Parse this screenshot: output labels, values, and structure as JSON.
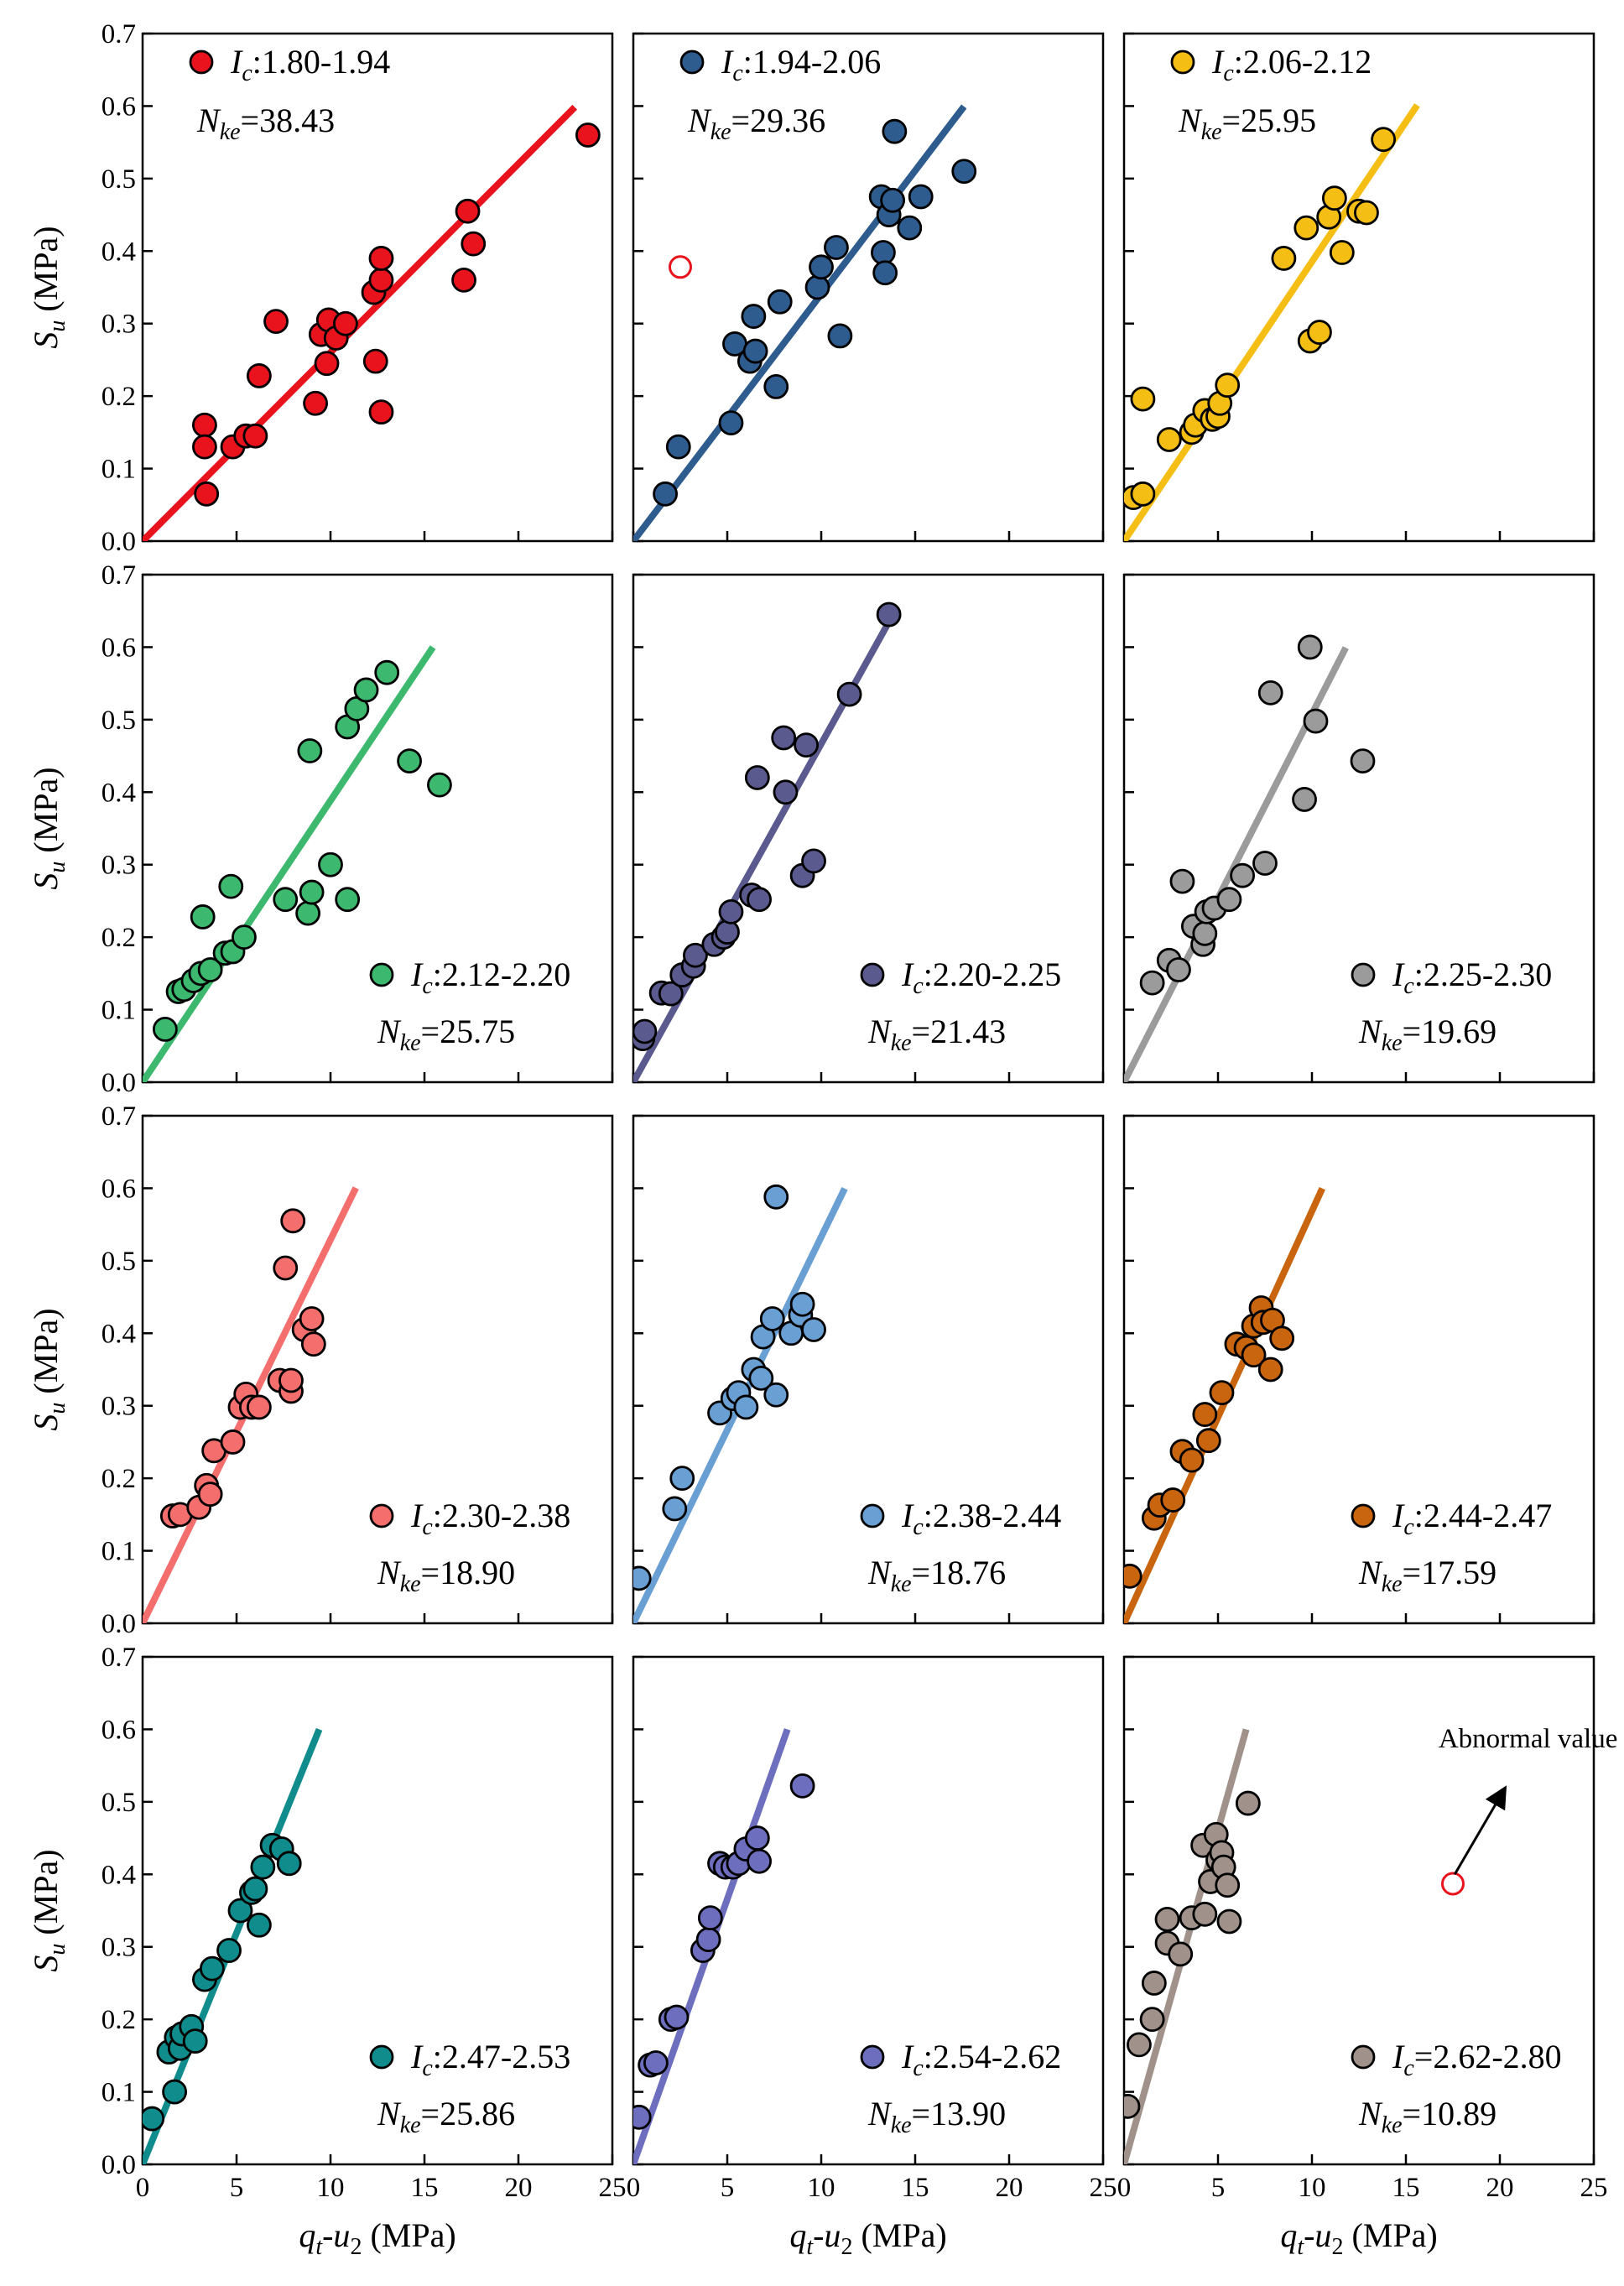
{
  "figure": {
    "xlabel": {
      "main": "q",
      "sub": "t",
      "rest": "-u",
      "sub2": "2",
      "unit": " (MPa)"
    },
    "ylabel": {
      "main": "S",
      "sub": "u",
      "unit": " (MPa)"
    },
    "xticks": [
      "0",
      "5",
      "10",
      "15",
      "20",
      "25"
    ],
    "yticks": [
      "0.0",
      "0.1",
      "0.2",
      "0.3",
      "0.4",
      "0.5",
      "0.6",
      "0.7"
    ]
  },
  "chart_data": [
    {
      "type": "scatter",
      "title": "",
      "xlabel": "qt-u2 (MPa)",
      "ylabel": "Su (MPa)",
      "xlim": [
        0,
        25
      ],
      "ylim": [
        0,
        0.7
      ],
      "legend": {
        "ic": "1.80-1.94",
        "nke": "=38.43",
        "position": "top-left"
      },
      "color": "#e8131c",
      "fit": {
        "slope": 0.02602,
        "x_end": 23.0
      },
      "points": [
        [
          3.3,
          0.16
        ],
        [
          3.3,
          0.13
        ],
        [
          3.4,
          0.065
        ],
        [
          4.8,
          0.13
        ],
        [
          5.5,
          0.145
        ],
        [
          6,
          0.145
        ],
        [
          6.2,
          0.228
        ],
        [
          7.1,
          0.303
        ],
        [
          9.2,
          0.19
        ],
        [
          9.5,
          0.285
        ],
        [
          9.8,
          0.245
        ],
        [
          9.9,
          0.305
        ],
        [
          10.3,
          0.28
        ],
        [
          10.8,
          0.3
        ],
        [
          12.3,
          0.343
        ],
        [
          12.4,
          0.248
        ],
        [
          12.7,
          0.36
        ],
        [
          12.7,
          0.39
        ],
        [
          12.7,
          0.178
        ],
        [
          17.1,
          0.36
        ],
        [
          17.3,
          0.455
        ],
        [
          17.6,
          0.41
        ],
        [
          23.7,
          0.56
        ]
      ],
      "abnormal": []
    },
    {
      "type": "scatter",
      "title": "",
      "xlabel": "qt-u2 (MPa)",
      "ylabel": "Su (MPa)",
      "xlim": [
        0,
        25
      ],
      "ylim": [
        0,
        0.7
      ],
      "legend": {
        "ic": "1.94-2.06",
        "nke": "=29.36",
        "position": "top-left"
      },
      "color": "#2e5c8e",
      "fit": {
        "slope": 0.03406,
        "x_end": 17.6
      },
      "points": [
        [
          1.7,
          0.065
        ],
        [
          2.4,
          0.13
        ],
        [
          5.2,
          0.163
        ],
        [
          5.4,
          0.272
        ],
        [
          6.2,
          0.248
        ],
        [
          6.4,
          0.31
        ],
        [
          6.5,
          0.262
        ],
        [
          7.6,
          0.213
        ],
        [
          7.8,
          0.33
        ],
        [
          9.8,
          0.35
        ],
        [
          10,
          0.378
        ],
        [
          10.8,
          0.405
        ],
        [
          11,
          0.283
        ],
        [
          13.2,
          0.475
        ],
        [
          13.3,
          0.398
        ],
        [
          13.4,
          0.37
        ],
        [
          13.6,
          0.45
        ],
        [
          13.8,
          0.47
        ],
        [
          13.9,
          0.565
        ],
        [
          14.7,
          0.432
        ],
        [
          15.3,
          0.475
        ],
        [
          17.6,
          0.51
        ]
      ],
      "abnormal": [
        [
          2.5,
          0.378
        ]
      ]
    },
    {
      "type": "scatter",
      "title": "",
      "xlabel": "qt-u2 (MPa)",
      "ylabel": "Su (MPa)",
      "xlim": [
        0,
        25
      ],
      "ylim": [
        0,
        0.7
      ],
      "legend": {
        "ic": "2.06-2.12",
        "nke": "=25.95",
        "position": "top-left"
      },
      "color": "#f5be14",
      "fit": {
        "slope": 0.03854,
        "x_end": 15.6
      },
      "points": [
        [
          0.5,
          0.06
        ],
        [
          1,
          0.065
        ],
        [
          1,
          0.196
        ],
        [
          2.4,
          0.14
        ],
        [
          3.6,
          0.15
        ],
        [
          3.8,
          0.16
        ],
        [
          4.3,
          0.18
        ],
        [
          4.7,
          0.168
        ],
        [
          5,
          0.172
        ],
        [
          5.1,
          0.19
        ],
        [
          5.5,
          0.215
        ],
        [
          8.5,
          0.39
        ],
        [
          9.7,
          0.432
        ],
        [
          9.9,
          0.276
        ],
        [
          10.4,
          0.288
        ],
        [
          10.9,
          0.447
        ],
        [
          11.2,
          0.473
        ],
        [
          11.6,
          0.398
        ],
        [
          12.5,
          0.455
        ],
        [
          12.9,
          0.453
        ],
        [
          13.8,
          0.554
        ]
      ],
      "abnormal": []
    },
    {
      "type": "scatter",
      "title": "",
      "xlabel": "qt-u2 (MPa)",
      "ylabel": "Su (MPa)",
      "xlim": [
        0,
        25
      ],
      "ylim": [
        0,
        0.7
      ],
      "legend": {
        "ic": "2.12-2.20",
        "nke": "=25.75",
        "position": "bottom-right"
      },
      "color": "#3cb96e",
      "fit": {
        "slope": 0.03883,
        "x_end": 15.45
      },
      "points": [
        [
          1.2,
          0.073
        ],
        [
          1.9,
          0.125
        ],
        [
          2.2,
          0.128
        ],
        [
          2.7,
          0.14
        ],
        [
          3.1,
          0.15
        ],
        [
          3.2,
          0.228
        ],
        [
          3.6,
          0.155
        ],
        [
          4.4,
          0.178
        ],
        [
          4.7,
          0.27
        ],
        [
          4.8,
          0.18
        ],
        [
          5.4,
          0.2
        ],
        [
          7.6,
          0.252
        ],
        [
          8.8,
          0.233
        ],
        [
          8.9,
          0.457
        ],
        [
          9,
          0.262
        ],
        [
          10,
          0.3
        ],
        [
          10.9,
          0.252
        ],
        [
          10.9,
          0.49
        ],
        [
          11.4,
          0.515
        ],
        [
          11.9,
          0.541
        ],
        [
          13,
          0.565
        ],
        [
          14.2,
          0.443
        ],
        [
          15.8,
          0.41
        ]
      ],
      "abnormal": []
    },
    {
      "type": "scatter",
      "title": "",
      "xlabel": "qt-u2 (MPa)",
      "ylabel": "Su (MPa)",
      "xlim": [
        0,
        25
      ],
      "ylim": [
        0,
        0.7
      ],
      "legend": {
        "ic": "2.20-2.25",
        "nke": "=21.43",
        "position": "bottom-right"
      },
      "color": "#5b5a8f",
      "fit": {
        "slope": 0.04667,
        "x_end": 13.5
      },
      "points": [
        [
          0.5,
          0.06
        ],
        [
          0.6,
          0.07
        ],
        [
          1.5,
          0.123
        ],
        [
          2,
          0.122
        ],
        [
          2.6,
          0.148
        ],
        [
          3.2,
          0.16
        ],
        [
          3.3,
          0.175
        ],
        [
          4.3,
          0.19
        ],
        [
          4.8,
          0.2
        ],
        [
          5,
          0.207
        ],
        [
          5.2,
          0.235
        ],
        [
          6.3,
          0.258
        ],
        [
          6.6,
          0.42
        ],
        [
          6.7,
          0.252
        ],
        [
          8,
          0.475
        ],
        [
          8.1,
          0.4
        ],
        [
          9,
          0.285
        ],
        [
          9.2,
          0.465
        ],
        [
          9.6,
          0.305
        ],
        [
          11.5,
          0.535
        ],
        [
          13.6,
          0.645
        ]
      ],
      "abnormal": []
    },
    {
      "type": "scatter",
      "title": "",
      "xlabel": "qt-u2 (MPa)",
      "ylabel": "Su (MPa)",
      "xlim": [
        0,
        25
      ],
      "ylim": [
        0,
        0.7
      ],
      "legend": {
        "ic": "2.25-2.30",
        "nke": "=19.69",
        "position": "bottom-right"
      },
      "color": "#9b9b9b",
      "fit": {
        "slope": 0.05079,
        "x_end": 11.8
      },
      "points": [
        [
          1.5,
          0.137
        ],
        [
          2.4,
          0.168
        ],
        [
          2.9,
          0.155
        ],
        [
          3.1,
          0.277
        ],
        [
          3.7,
          0.215
        ],
        [
          4.2,
          0.19
        ],
        [
          4.3,
          0.205
        ],
        [
          4.4,
          0.235
        ],
        [
          4.8,
          0.24
        ],
        [
          5.6,
          0.252
        ],
        [
          6.3,
          0.285
        ],
        [
          7.5,
          0.302
        ],
        [
          7.8,
          0.537
        ],
        [
          9.6,
          0.39
        ],
        [
          9.9,
          0.6
        ],
        [
          10.2,
          0.498
        ],
        [
          12.7,
          0.443
        ]
      ],
      "abnormal": []
    },
    {
      "type": "scatter",
      "title": "",
      "xlabel": "qt-u2 (MPa)",
      "ylabel": "Su (MPa)",
      "xlim": [
        0,
        25
      ],
      "ylim": [
        0,
        0.7
      ],
      "legend": {
        "ic": "2.30-2.38",
        "nke": "=18.90",
        "position": "bottom-right"
      },
      "color": "#f46e6e",
      "fit": {
        "slope": 0.05291,
        "x_end": 11.35
      },
      "points": [
        [
          1.6,
          0.148
        ],
        [
          2,
          0.15
        ],
        [
          3,
          0.16
        ],
        [
          3.4,
          0.19
        ],
        [
          3.6,
          0.178
        ],
        [
          3.8,
          0.238
        ],
        [
          4.8,
          0.25
        ],
        [
          5.2,
          0.298
        ],
        [
          5.5,
          0.316
        ],
        [
          5.8,
          0.298
        ],
        [
          6.2,
          0.298
        ],
        [
          7.3,
          0.335
        ],
        [
          7.6,
          0.49
        ],
        [
          7.9,
          0.32
        ],
        [
          7.9,
          0.335
        ],
        [
          8,
          0.555
        ],
        [
          8.6,
          0.405
        ],
        [
          9,
          0.42
        ],
        [
          9.1,
          0.385
        ]
      ],
      "abnormal": []
    },
    {
      "type": "scatter",
      "title": "",
      "xlabel": "qt-u2 (MPa)",
      "ylabel": "Su (MPa)",
      "xlim": [
        0,
        25
      ],
      "ylim": [
        0,
        0.7
      ],
      "legend": {
        "ic": "2.38-2.44",
        "nke": "=18.76",
        "position": "bottom-right"
      },
      "color": "#6a9fd4",
      "fit": {
        "slope": 0.0533,
        "x_end": 11.25
      },
      "points": [
        [
          0.3,
          0.062
        ],
        [
          2.2,
          0.158
        ],
        [
          2.6,
          0.2
        ],
        [
          4.6,
          0.29
        ],
        [
          5.3,
          0.31
        ],
        [
          5.6,
          0.318
        ],
        [
          6,
          0.298
        ],
        [
          6.4,
          0.35
        ],
        [
          6.8,
          0.338
        ],
        [
          6.9,
          0.395
        ],
        [
          7.4,
          0.42
        ],
        [
          7.6,
          0.315
        ],
        [
          7.6,
          0.588
        ],
        [
          8.4,
          0.4
        ],
        [
          8.9,
          0.425
        ],
        [
          9,
          0.44
        ],
        [
          9.6,
          0.405
        ]
      ],
      "abnormal": []
    },
    {
      "type": "scatter",
      "title": "",
      "xlabel": "qt-u2 (MPa)",
      "ylabel": "Su (MPa)",
      "xlim": [
        0,
        25
      ],
      "ylim": [
        0,
        0.7
      ],
      "legend": {
        "ic": "2.44-2.47",
        "nke": "=17.59",
        "position": "bottom-right"
      },
      "color": "#c8650e",
      "fit": {
        "slope": 0.05685,
        "x_end": 10.55
      },
      "points": [
        [
          0.3,
          0.065
        ],
        [
          1.6,
          0.145
        ],
        [
          1.9,
          0.163
        ],
        [
          2.6,
          0.17
        ],
        [
          3.1,
          0.237
        ],
        [
          3.6,
          0.225
        ],
        [
          4.3,
          0.288
        ],
        [
          4.5,
          0.252
        ],
        [
          5.2,
          0.318
        ],
        [
          6,
          0.385
        ],
        [
          6.5,
          0.38
        ],
        [
          6.9,
          0.41
        ],
        [
          6.9,
          0.37
        ],
        [
          7.3,
          0.435
        ],
        [
          7.4,
          0.415
        ],
        [
          7.8,
          0.35
        ],
        [
          7.9,
          0.418
        ],
        [
          8.4,
          0.393
        ]
      ],
      "abnormal": []
    },
    {
      "type": "scatter",
      "title": "",
      "xlabel": "qt-u2 (MPa)",
      "ylabel": "Su (MPa)",
      "xlim": [
        0,
        25
      ],
      "ylim": [
        0,
        0.7
      ],
      "legend": {
        "ic": "2.47-2.53",
        "nke": "=25.86",
        "position": "bottom-right"
      },
      "color": "#108c8c",
      "fit": {
        "slope": 0.06383,
        "x_end": 9.4
      },
      "points": [
        [
          0.5,
          0.063
        ],
        [
          1.4,
          0.155
        ],
        [
          1.7,
          0.1
        ],
        [
          1.8,
          0.175
        ],
        [
          2,
          0.16
        ],
        [
          2.1,
          0.18
        ],
        [
          2.6,
          0.19
        ],
        [
          2.8,
          0.17
        ],
        [
          3.3,
          0.255
        ],
        [
          3.7,
          0.27
        ],
        [
          4.6,
          0.295
        ],
        [
          5.2,
          0.35
        ],
        [
          5.8,
          0.375
        ],
        [
          6,
          0.38
        ],
        [
          6.2,
          0.33
        ],
        [
          6.4,
          0.41
        ],
        [
          6.9,
          0.44
        ],
        [
          7.4,
          0.435
        ],
        [
          7.8,
          0.415
        ]
      ],
      "abnormal": []
    },
    {
      "type": "scatter",
      "title": "",
      "xlabel": "qt-u2 (MPa)",
      "ylabel": "Su (MPa)",
      "xlim": [
        0,
        25
      ],
      "ylim": [
        0,
        0.7
      ],
      "legend": {
        "ic": "2.54-2.62",
        "nke": "=13.90",
        "position": "bottom-right"
      },
      "color": "#6e6ebf",
      "fit": {
        "slope": 0.07317,
        "x_end": 8.2
      },
      "points": [
        [
          0.3,
          0.065
        ],
        [
          0.9,
          0.137
        ],
        [
          1.2,
          0.14
        ],
        [
          2,
          0.2
        ],
        [
          2.3,
          0.203
        ],
        [
          3.7,
          0.295
        ],
        [
          4,
          0.31
        ],
        [
          4.1,
          0.34
        ],
        [
          4.6,
          0.415
        ],
        [
          4.9,
          0.41
        ],
        [
          5.3,
          0.41
        ],
        [
          5.6,
          0.415
        ],
        [
          6,
          0.435
        ],
        [
          6.6,
          0.45
        ],
        [
          6.7,
          0.418
        ],
        [
          9,
          0.522
        ]
      ],
      "abnormal": []
    },
    {
      "type": "scatter",
      "title": "",
      "xlabel": "qt-u2 (MPa)",
      "ylabel": "Su (MPa)",
      "xlim": [
        0,
        25
      ],
      "ylim": [
        0,
        0.7
      ],
      "legend": {
        "ic": "=2.62-2.80",
        "nke": "=10.89",
        "position": "bottom-right"
      },
      "color": "#a0928a",
      "fit": {
        "slope": 0.09231,
        "x_end": 6.5
      },
      "points": [
        [
          0.2,
          0.08
        ],
        [
          0.8,
          0.165
        ],
        [
          1.5,
          0.2
        ],
        [
          1.6,
          0.25
        ],
        [
          2.3,
          0.338
        ],
        [
          2.3,
          0.305
        ],
        [
          3,
          0.29
        ],
        [
          3.6,
          0.34
        ],
        [
          4.2,
          0.44
        ],
        [
          4.3,
          0.345
        ],
        [
          4.6,
          0.39
        ],
        [
          4.9,
          0.455
        ],
        [
          5,
          0.42
        ],
        [
          5.2,
          0.43
        ],
        [
          5.3,
          0.41
        ],
        [
          5.5,
          0.385
        ],
        [
          5.6,
          0.335
        ],
        [
          6.6,
          0.498
        ]
      ],
      "abnormal": [
        [
          17.5,
          0.387
        ]
      ],
      "annotation": {
        "text": "Abnormal value",
        "arrow_from": [
          17.6,
          0.4
        ],
        "arrow_to": [
          20.3,
          0.52
        ],
        "text_x": 21.5,
        "text_y": 0.575
      }
    }
  ]
}
